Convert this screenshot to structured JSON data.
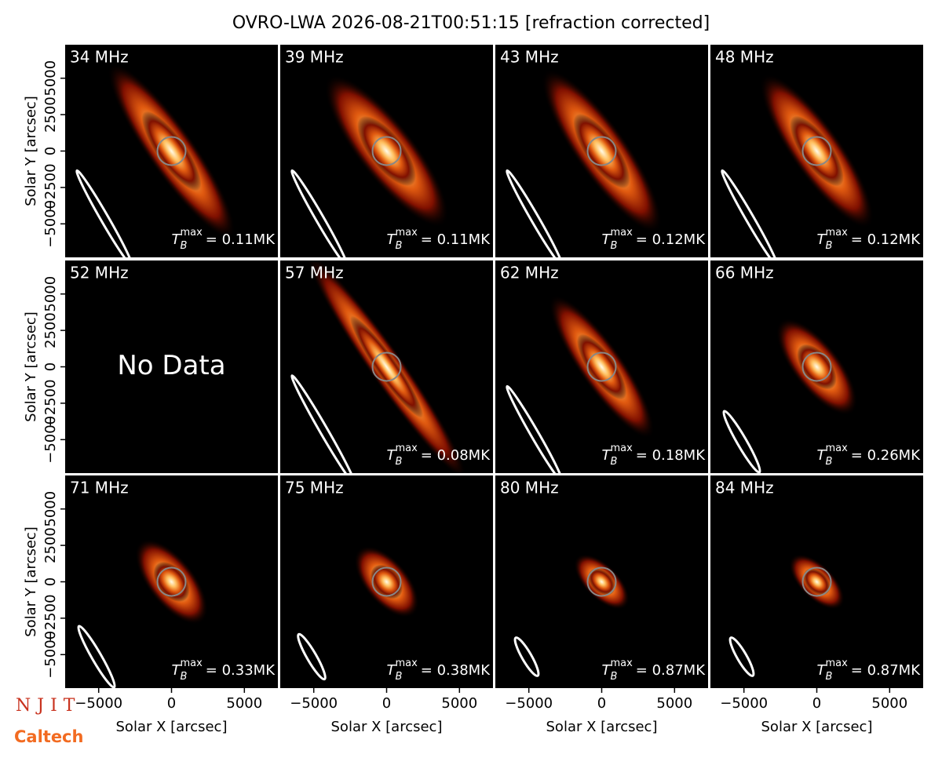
{
  "title": "OVRO-LWA 2026-08-21T00:51:15 [refraction corrected]",
  "logos": [
    "NJIT",
    "Caltech"
  ],
  "chart_data": [
    {
      "type": "image",
      "title": "34 MHz",
      "annotation": {
        "symbol": "T",
        "subscript": "B",
        "superscript": "max",
        "text": "= 0.11MK"
      },
      "xlim": [
        -7300,
        7300
      ],
      "ylim": [
        -7300,
        7300
      ],
      "yticks": [
        {
          "value": -5000,
          "label": "−5000"
        },
        {
          "value": -2500,
          "label": "−2500"
        },
        0,
        2500,
        5000
      ],
      "ylabel": "Solar Y [arcsec]"
    },
    {
      "type": "image",
      "title": "39 MHz",
      "annotation": {
        "symbol": "T",
        "subscript": "B",
        "superscript": "max",
        "text": "= 0.11MK"
      },
      "xlim": [
        -7300,
        7300
      ],
      "ylim": [
        -7300,
        7300
      ]
    },
    {
      "type": "image",
      "title": "43 MHz",
      "annotation": {
        "symbol": "T",
        "subscript": "B",
        "superscript": "max",
        "text": "= 0.12MK"
      },
      "xlim": [
        -7300,
        7300
      ],
      "ylim": [
        -7300,
        7300
      ]
    },
    {
      "type": "image",
      "title": "48 MHz",
      "annotation": {
        "symbol": "T",
        "subscript": "B",
        "superscript": "max",
        "text": "= 0.12MK"
      },
      "xlim": [
        -7300,
        7300
      ],
      "ylim": [
        -7300,
        7300
      ]
    },
    {
      "type": "image",
      "title": "52 MHz",
      "note": "No Data",
      "xlim": [
        -7300,
        7300
      ],
      "ylim": [
        -7300,
        7300
      ],
      "yticks": [
        {
          "value": -5000,
          "label": "−5000"
        },
        {
          "value": -2500,
          "label": "−2500"
        },
        0,
        2500,
        5000
      ],
      "ylabel": "Solar Y [arcsec]"
    },
    {
      "type": "image",
      "title": "57 MHz",
      "annotation": {
        "symbol": "T",
        "subscript": "B",
        "superscript": "max",
        "text": "= 0.08MK"
      },
      "xlim": [
        -7300,
        7300
      ],
      "ylim": [
        -7300,
        7300
      ]
    },
    {
      "type": "image",
      "title": "62 MHz",
      "annotation": {
        "symbol": "T",
        "subscript": "B",
        "superscript": "max",
        "text": "= 0.18MK"
      },
      "xlim": [
        -7300,
        7300
      ],
      "ylim": [
        -7300,
        7300
      ]
    },
    {
      "type": "image",
      "title": "66 MHz",
      "annotation": {
        "symbol": "T",
        "subscript": "B",
        "superscript": "max",
        "text": "= 0.26MK"
      },
      "xlim": [
        -7300,
        7300
      ],
      "ylim": [
        -7300,
        7300
      ]
    },
    {
      "type": "image",
      "title": "71 MHz",
      "annotation": {
        "symbol": "T",
        "subscript": "B",
        "superscript": "max",
        "text": "= 0.33MK"
      },
      "xlim": [
        -7300,
        7300
      ],
      "ylim": [
        -7300,
        7300
      ],
      "xticks": [
        {
          "value": -5000,
          "label": "−5000"
        },
        0,
        5000
      ],
      "yticks": [
        {
          "value": -5000,
          "label": "−5000"
        },
        {
          "value": -2500,
          "label": "−2500"
        },
        0,
        2500,
        5000
      ],
      "xlabel": "Solar X [arcsec]",
      "ylabel": "Solar Y [arcsec]"
    },
    {
      "type": "image",
      "title": "75 MHz",
      "annotation": {
        "symbol": "T",
        "subscript": "B",
        "superscript": "max",
        "text": "= 0.38MK"
      },
      "xlim": [
        -7300,
        7300
      ],
      "ylim": [
        -7300,
        7300
      ],
      "xticks": [
        {
          "value": -5000,
          "label": "−5000"
        },
        0,
        5000
      ],
      "xlabel": "Solar X [arcsec]"
    },
    {
      "type": "image",
      "title": "80 MHz",
      "annotation": {
        "symbol": "T",
        "subscript": "B",
        "superscript": "max",
        "text": "= 0.87MK"
      },
      "xlim": [
        -7300,
        7300
      ],
      "ylim": [
        -7300,
        7300
      ],
      "xticks": [
        {
          "value": -5000,
          "label": "−5000"
        },
        0,
        5000
      ],
      "xlabel": "Solar X [arcsec]"
    },
    {
      "type": "image",
      "title": "84 MHz",
      "annotation": {
        "symbol": "T",
        "subscript": "B",
        "superscript": "max",
        "text": "= 0.87MK"
      },
      "xlim": [
        -7300,
        7300
      ],
      "ylim": [
        -7300,
        7300
      ],
      "xticks": [
        {
          "value": -5000,
          "label": "−5000"
        },
        0,
        5000
      ],
      "xlabel": "Solar X [arcsec]"
    }
  ]
}
